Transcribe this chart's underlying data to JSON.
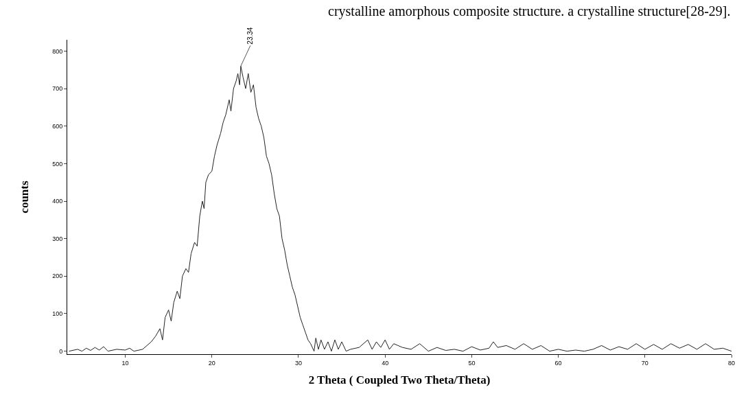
{
  "chart_data": {
    "type": "line",
    "xlabel": "2 Theta ( Coupled Two Theta/Theta)",
    "ylabel": "counts",
    "annotations": [
      "crystalline amorphous composite structure. a crystalline structure[28-29].",
      {
        "text": "23.34",
        "x": 23.34,
        "y": 760
      }
    ],
    "x": [
      3.5,
      4.5,
      5,
      5.5,
      6,
      6.5,
      7,
      7.5,
      8,
      9,
      10,
      10.5,
      11,
      12,
      12.5,
      13,
      13.5,
      14,
      14.3,
      14.6,
      15,
      15.3,
      15.6,
      16,
      16.3,
      16.6,
      17,
      17.3,
      17.6,
      18,
      18.3,
      18.6,
      18.9,
      19.1,
      19.3,
      19.6,
      20,
      20.3,
      20.6,
      21,
      21.3,
      21.6,
      22,
      22.2,
      22.5,
      22.8,
      23,
      23.2,
      23.34,
      23.6,
      23.9,
      24.2,
      24.5,
      24.8,
      25.1,
      25.4,
      25.7,
      26,
      26.3,
      26.6,
      26.9,
      27.2,
      27.5,
      27.8,
      28.1,
      28.4,
      28.7,
      29,
      29.3,
      29.6,
      29.9,
      30.2,
      30.5,
      30.8,
      31.1,
      31.4,
      31.8,
      32,
      32.3,
      32.6,
      33,
      33.4,
      33.8,
      34.2,
      34.6,
      35,
      35.5,
      36,
      37,
      38,
      38.5,
      39,
      39.5,
      40,
      40.5,
      41,
      42,
      43,
      44,
      45,
      46,
      47,
      48,
      49,
      50,
      51,
      52,
      52.5,
      53,
      54,
      55,
      56,
      57,
      58,
      59,
      60,
      61,
      62,
      63,
      64,
      65,
      66,
      67,
      68,
      69,
      70,
      71,
      72,
      73,
      74,
      75,
      76,
      77,
      78,
      79,
      80
    ],
    "series": [
      {
        "color": "#222222",
        "values": [
          0,
          5,
          0,
          8,
          2,
          10,
          3,
          12,
          0,
          5,
          3,
          8,
          0,
          5,
          15,
          25,
          40,
          60,
          30,
          90,
          110,
          80,
          130,
          160,
          140,
          200,
          220,
          210,
          260,
          290,
          280,
          360,
          400,
          380,
          450,
          470,
          480,
          520,
          550,
          580,
          610,
          630,
          670,
          640,
          700,
          720,
          740,
          710,
          760,
          730,
          700,
          740,
          690,
          710,
          650,
          620,
          600,
          570,
          520,
          500,
          470,
          420,
          380,
          360,
          300,
          270,
          230,
          200,
          170,
          150,
          120,
          90,
          70,
          50,
          30,
          20,
          0,
          35,
          5,
          30,
          5,
          25,
          0,
          30,
          5,
          25,
          0,
          5,
          10,
          30,
          5,
          25,
          10,
          30,
          5,
          20,
          10,
          5,
          20,
          0,
          10,
          2,
          5,
          0,
          12,
          3,
          8,
          25,
          10,
          15,
          5,
          20,
          5,
          15,
          0,
          5,
          0,
          3,
          0,
          5,
          15,
          3,
          12,
          5,
          20,
          5,
          18,
          5,
          20,
          8,
          18,
          5,
          20,
          5,
          8,
          0
        ]
      }
    ],
    "xlim": [
      3.3,
      80
    ],
    "xticks": [
      10,
      20,
      30,
      40,
      50,
      60,
      70,
      80
    ],
    "ylim": [
      -8,
      830
    ],
    "yticks": [
      0,
      100,
      200,
      300,
      400,
      500,
      600,
      700,
      800
    ],
    "marker": "none",
    "line_style": "solid"
  }
}
